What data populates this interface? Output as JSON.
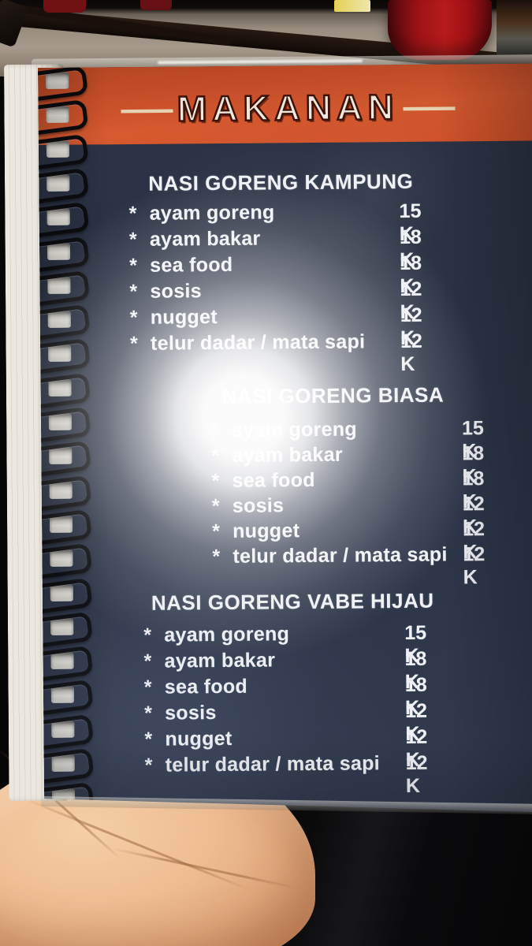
{
  "banner": {
    "label": "MAKANAN",
    "dash": "—"
  },
  "menu": {
    "bullet": "*",
    "sections": [
      {
        "title": "NASI GORENG KAMPUNG",
        "items": [
          {
            "name": "ayam goreng",
            "price": "15 K"
          },
          {
            "name": "ayam bakar",
            "price": "18 K"
          },
          {
            "name": "sea food",
            "price": "18 K"
          },
          {
            "name": "sosis",
            "price": "12 K"
          },
          {
            "name": "nugget",
            "price": "12 K"
          },
          {
            "name": "telur dadar / mata sapi",
            "price": "12 K"
          }
        ]
      },
      {
        "title": "NASI GORENG BIASA",
        "items": [
          {
            "name": "ayam goreng",
            "price": "15 K"
          },
          {
            "name": "ayam bakar",
            "price": "18 K"
          },
          {
            "name": "sea food",
            "price": "18 K"
          },
          {
            "name": "sosis",
            "price": "12 K"
          },
          {
            "name": "nugget",
            "price": "12 K"
          },
          {
            "name": "telur dadar / mata sapi",
            "price": "12 K"
          }
        ]
      },
      {
        "title": "NASI GORENG VABE HIJAU",
        "items": [
          {
            "name": "ayam goreng",
            "price": "15 K"
          },
          {
            "name": "ayam bakar",
            "price": "18 K"
          },
          {
            "name": "sea food",
            "price": "18 K"
          },
          {
            "name": "sosis",
            "price": "12 K"
          },
          {
            "name": "nugget",
            "price": "12 K"
          },
          {
            "name": "telur dadar / mata sapi",
            "price": "12 K"
          }
        ]
      }
    ]
  },
  "colors": {
    "banner_bg": "#d4532b",
    "banner_text": "#fbf5e8",
    "banner_outline": "#401309",
    "dash_color": "#f0ddba",
    "page_bg": "#2b3243",
    "text": "#f0f1f4"
  }
}
